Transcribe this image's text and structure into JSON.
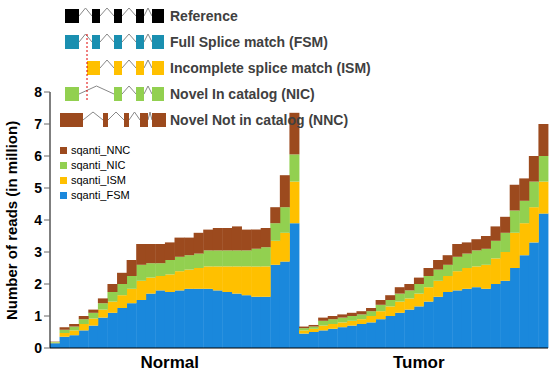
{
  "chart_data": {
    "type": "bar",
    "stacked": true,
    "ylabel": "Number of reads (in million)",
    "ylim": [
      0,
      8
    ],
    "yticks": [
      0,
      1,
      2,
      3,
      4,
      5,
      6,
      7,
      8
    ],
    "grid": false,
    "legend": "upper left",
    "categories": [
      null,
      null,
      null,
      null,
      null,
      null,
      null,
      null,
      null,
      null,
      null,
      null,
      "Normal",
      null,
      null,
      null,
      null,
      null,
      null,
      null,
      null,
      null,
      null,
      null,
      null,
      null,
      null,
      null,
      null,
      null,
      null,
      null,
      null,
      null,
      null,
      null,
      null,
      null,
      "Tumor",
      null,
      null,
      null,
      null,
      null,
      null,
      null,
      null,
      null,
      null,
      null,
      null,
      null
    ],
    "series": [
      {
        "name": "sqanti_FSM",
        "color": "#1a88dc",
        "values": [
          0.15,
          0.35,
          0.4,
          0.55,
          0.7,
          0.95,
          1.1,
          1.25,
          1.4,
          1.5,
          1.7,
          1.8,
          1.75,
          1.8,
          1.85,
          1.85,
          1.85,
          1.8,
          1.75,
          1.7,
          1.65,
          1.6,
          1.6,
          2.6,
          2.7,
          3.9,
          0.45,
          0.5,
          0.55,
          0.6,
          0.65,
          0.7,
          0.75,
          0.8,
          0.9,
          1.0,
          1.1,
          1.2,
          1.3,
          1.45,
          1.6,
          1.75,
          1.8,
          1.85,
          1.9,
          1.85,
          2.0,
          2.1,
          2.5,
          2.9,
          3.3,
          4.2
        ]
      },
      {
        "name": "sqanti_ISM",
        "color": "#ffc000",
        "values": [
          0.02,
          0.12,
          0.15,
          0.2,
          0.22,
          0.25,
          0.35,
          0.4,
          0.45,
          0.6,
          0.5,
          0.45,
          0.55,
          0.6,
          0.6,
          0.65,
          0.7,
          0.75,
          0.8,
          0.85,
          0.9,
          0.95,
          0.95,
          0.75,
          0.9,
          1.3,
          0.1,
          0.1,
          0.15,
          0.15,
          0.15,
          0.15,
          0.15,
          0.2,
          0.25,
          0.3,
          0.35,
          0.35,
          0.4,
          0.45,
          0.5,
          0.5,
          0.6,
          0.65,
          0.65,
          0.75,
          0.8,
          0.9,
          1.1,
          1.0,
          1.1,
          1.0
        ]
      },
      {
        "name": "sqanti_NIC",
        "color": "#92d050",
        "values": [
          0.02,
          0.1,
          0.12,
          0.15,
          0.18,
          0.2,
          0.3,
          0.35,
          0.4,
          0.5,
          0.45,
          0.4,
          0.45,
          0.45,
          0.45,
          0.45,
          0.5,
          0.5,
          0.5,
          0.5,
          0.5,
          0.55,
          0.6,
          0.55,
          0.8,
          0.85,
          0.07,
          0.07,
          0.15,
          0.15,
          0.15,
          0.15,
          0.15,
          0.15,
          0.2,
          0.2,
          0.25,
          0.25,
          0.3,
          0.35,
          0.35,
          0.35,
          0.45,
          0.45,
          0.5,
          0.5,
          0.55,
          0.6,
          0.7,
          0.7,
          0.8,
          0.8
        ]
      },
      {
        "name": "sqanti_NNC",
        "color": "#9c4a1e",
        "values": [
          0.01,
          0.08,
          0.08,
          0.1,
          0.1,
          0.15,
          0.25,
          0.35,
          0.5,
          0.65,
          0.6,
          0.6,
          0.55,
          0.6,
          0.55,
          0.65,
          0.65,
          0.7,
          0.7,
          0.75,
          0.65,
          0.6,
          0.6,
          0.5,
          1.0,
          1.3,
          0.05,
          0.05,
          0.1,
          0.1,
          0.1,
          0.1,
          0.1,
          0.1,
          0.15,
          0.15,
          0.2,
          0.2,
          0.2,
          0.25,
          0.3,
          0.3,
          0.4,
          0.35,
          0.35,
          0.4,
          0.45,
          0.5,
          0.8,
          0.7,
          0.8,
          1.0
        ]
      }
    ]
  },
  "diagram": {
    "rows": [
      {
        "label": "Reference",
        "color": "#000000"
      },
      {
        "label": "Full Splice match (FSM)",
        "color": "#1a8fb0"
      },
      {
        "label": "Incomplete splice match (ISM)",
        "color": "#ffc000"
      },
      {
        "label": "Novel In catalog (NIC)",
        "color": "#92d050"
      },
      {
        "label": "Novel Not in catalog (NNC)",
        "color": "#9c4a1e"
      }
    ]
  }
}
